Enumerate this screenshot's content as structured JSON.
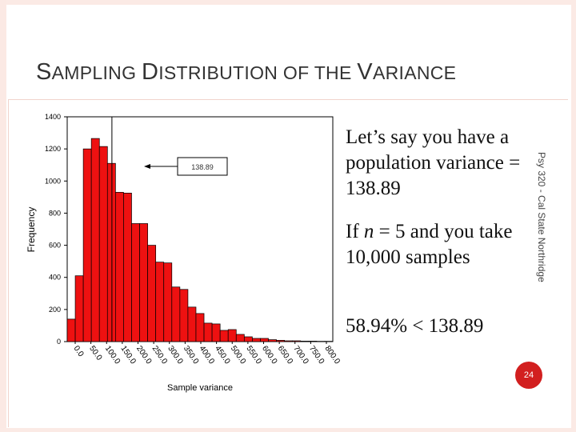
{
  "slide": {
    "title_parts": [
      {
        "text": "S",
        "big": true
      },
      {
        "text": "AMPLING ",
        "big": false
      },
      {
        "text": "D",
        "big": true
      },
      {
        "text": "ISTRIBUTION OF THE ",
        "big": false
      },
      {
        "text": "V",
        "big": true
      },
      {
        "text": "ARIANCE",
        "big": false
      }
    ],
    "side_label": "Psy 320 - Cal State Northridge",
    "text_block_1": "Let’s say you have a population variance = 138.89",
    "text_block_2_prefix": "If ",
    "text_block_2_var": "n",
    "text_block_2_suffix": " = 5 and you take 10,000 samples",
    "text_block_3": "58.94% < 138.89",
    "page_number": "24"
  },
  "colors": {
    "bar_fill": "#ee1111",
    "bar_stroke": "#000000",
    "page_circle": "#d21f1f"
  },
  "chart_data": {
    "type": "bar",
    "xlabel": "Sample variance",
    "ylabel": "Frequency",
    "ylim": [
      0,
      1400
    ],
    "yticks": [
      0,
      200,
      400,
      600,
      800,
      1000,
      1200,
      1400
    ],
    "tick_labels": [
      "0.0",
      "50.0",
      "100.0",
      "150.0",
      "200.0",
      "250.0",
      "300.0",
      "350.0",
      "400.0",
      "450.0",
      "500.0",
      "550.0",
      "600.0",
      "650.0",
      "700.0",
      "750.0",
      "800.0"
    ],
    "values": [
      140,
      410,
      1200,
      1265,
      1215,
      1110,
      930,
      925,
      735,
      735,
      600,
      495,
      490,
      340,
      325,
      215,
      175,
      115,
      110,
      70,
      75,
      45,
      30,
      20,
      20,
      12,
      8,
      5,
      5,
      3,
      3,
      2,
      2
    ],
    "reference_line": {
      "x": 138.89,
      "label": "138.89"
    }
  }
}
